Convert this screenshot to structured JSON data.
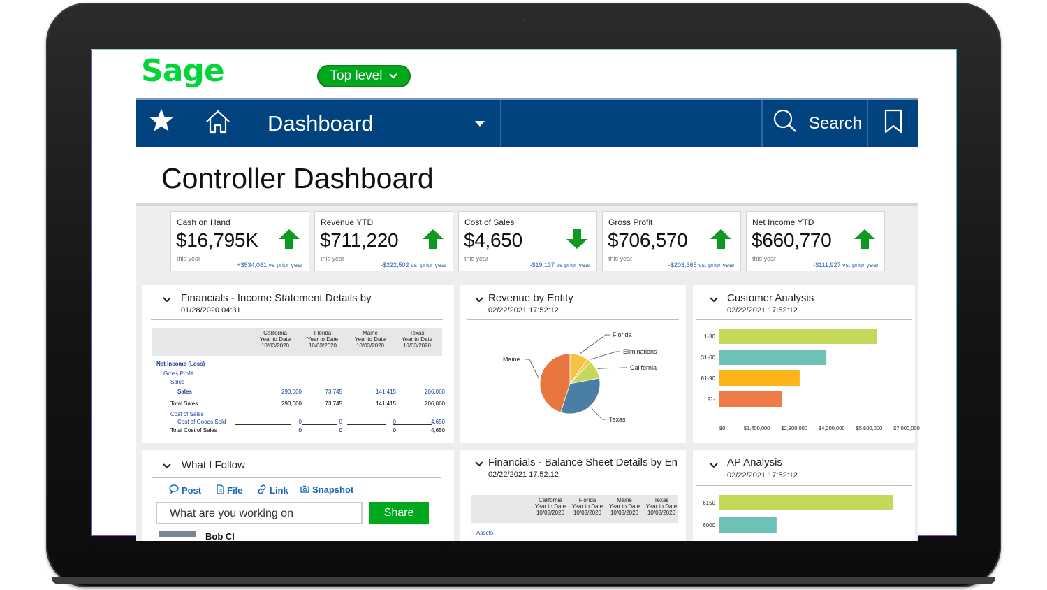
{
  "header": {
    "logo_text": "Sage",
    "scope_selector": "Top level",
    "brand_green": "#00d639",
    "nav_blue": "#00437f"
  },
  "nav": {
    "section": "Dashboard",
    "search_label": "Search",
    "icons": [
      "star-icon",
      "home-icon",
      "chevron-down-icon",
      "search-icon",
      "bookmark-icon"
    ]
  },
  "page": {
    "title": "Controller Dashboard"
  },
  "kpis": [
    {
      "label": "Cash on Hand",
      "value": "$16,795K",
      "sub": "this year",
      "comparison": "+$534,081 vs prior year",
      "trend": "up"
    },
    {
      "label": "Revenue YTD",
      "value": "$711,220",
      "sub": "this year",
      "comparison": "-$222,502 vs. prior year",
      "trend": "up"
    },
    {
      "label": "Cost of Sales",
      "value": "$4,650",
      "sub": "this year",
      "comparison": "-$19,137 vs prior year",
      "trend": "down"
    },
    {
      "label": "Gross Profit",
      "value": "$706,570",
      "sub": "this year",
      "comparison": "-$203,365 vs. prior year",
      "trend": "up"
    },
    {
      "label": "Net Income YTD",
      "value": "$660,770",
      "sub": "this year",
      "comparison": "-$111,927 vs. prior year",
      "trend": "up"
    }
  ],
  "income_statement": {
    "title": "Financials - Income Statement Details by",
    "date": "01/28/2020 04:31",
    "columns": [
      {
        "line1": "California",
        "line2": "Year to Date",
        "line3": "10/03/2020"
      },
      {
        "line1": "Florida",
        "line2": "Year to Date",
        "line3": "10/03/2020"
      },
      {
        "line1": "Maine",
        "line2": "Year to Date",
        "line3": "10/03/2020"
      },
      {
        "line1": "Texas",
        "line2": "Year to Date",
        "line3": "10/03/2020"
      }
    ],
    "rows": [
      {
        "label": "Net Income (Loss)",
        "values": [
          "",
          "",
          "",
          ""
        ]
      },
      {
        "label": "Gross Profit",
        "values": [
          "",
          "",
          "",
          ""
        ]
      },
      {
        "label": "Sales",
        "values": [
          "",
          "",
          "",
          ""
        ]
      },
      {
        "label": "Sales",
        "values": [
          "290,000",
          "73,745",
          "141,415",
          "206,060"
        ]
      },
      {
        "label": "Total Sales",
        "values": [
          "290,000",
          "73,745",
          "141,415",
          "206,060"
        ]
      },
      {
        "label": "Cost of Sales",
        "values": [
          "",
          "",
          "",
          ""
        ]
      },
      {
        "label": "Cost of Goods Sold",
        "values": [
          "0",
          "0",
          "0",
          "4,650"
        ]
      },
      {
        "label": "Total Cost of Sales",
        "values": [
          "0",
          "0",
          "0",
          "4,650"
        ]
      }
    ]
  },
  "revenue_by_entity": {
    "title": "Revenue by Entity",
    "date": "02/22/2021 17:52:12",
    "labels": [
      "Florida",
      "Eliminations",
      "California",
      "Texas",
      "Maine"
    ]
  },
  "customer_analysis": {
    "title": "Customer Analysis",
    "date": "02/22/2021 17:52:12",
    "x_ticks": [
      "$0",
      "$1,400,000",
      "$2,800,000",
      "$4,200,000",
      "$5,600,000",
      "$7,000,000"
    ]
  },
  "what_i_follow": {
    "title": "What I Follow",
    "actions": [
      "Post",
      "File",
      "Link",
      "Snapshot"
    ],
    "input_placeholder": "What are you working on",
    "share_label": "Share",
    "partial_name": "Bob Cl"
  },
  "balance_sheet": {
    "title": "Financials - Balance Sheet Details by En",
    "date": "02/22/2021 17:52:12",
    "columns": [
      {
        "line1": "California",
        "line2": "Year to Date",
        "line3": "10/03/2020"
      },
      {
        "line1": "Florida",
        "line2": "Year to Date",
        "line3": "10/03/2020"
      },
      {
        "line1": "Maine",
        "line2": "Year to Date",
        "line3": "10/03/2020"
      },
      {
        "line1": "Texas",
        "line2": "Year to Date",
        "line3": "10/03/2020"
      }
    ],
    "first_row": "Assets"
  },
  "ap_analysis": {
    "title": "AP Analysis",
    "date": "02/22/2021 17:52:12"
  },
  "chart_data": [
    {
      "type": "pie",
      "title": "",
      "categories": [
        "Florida",
        "Eliminations",
        "California",
        "Texas",
        "Maine"
      ],
      "values": [
        10,
        2,
        10,
        33,
        45
      ],
      "colors": [
        "#f6c243",
        "#f6c243",
        "#c5d85a",
        "#4a7fa3",
        "#e8763f"
      ]
    },
    {
      "type": "bar",
      "orientation": "horizontal",
      "title": "",
      "categories": [
        "1-30",
        "31-60",
        "61-90",
        "91-"
      ],
      "values": [
        5900000,
        4000000,
        3000000,
        2340000
      ],
      "colors": [
        "#c5d85a",
        "#6ec1b6",
        "#fbb41a",
        "#ef7c48"
      ],
      "xlim": [
        0,
        7000000
      ],
      "x_ticks": [
        "$0",
        "$1,400,000",
        "$2,800,000",
        "$4,200,000",
        "$5,600,000",
        "$7,000,000"
      ],
      "grid": false
    },
    {
      "type": "bar",
      "orientation": "horizontal",
      "title": "",
      "categories": [
        "6150",
        "6000"
      ],
      "values": [
        100,
        33
      ],
      "colors": [
        "#c5d85a",
        "#6ec1b6"
      ]
    }
  ]
}
